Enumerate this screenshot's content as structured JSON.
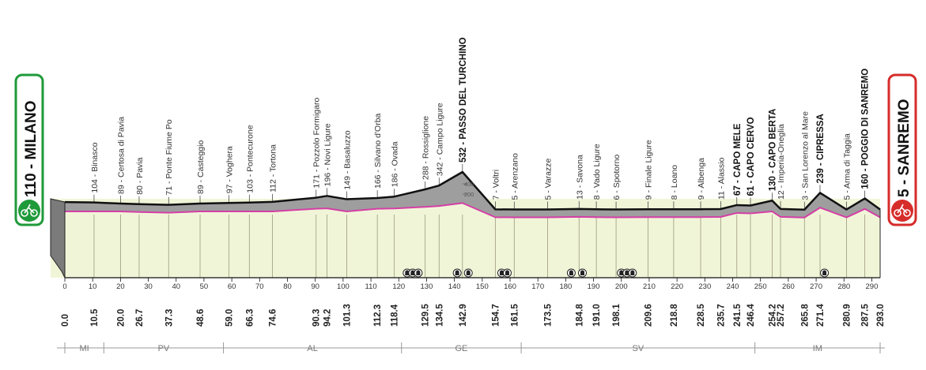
{
  "chart_data": {
    "type": "area",
    "title": "",
    "xlabel": "",
    "ylabel": "",
    "xlim": [
      0,
      293
    ],
    "x_ticks": [
      0,
      10,
      20,
      30,
      40,
      50,
      60,
      70,
      80,
      90,
      100,
      110,
      120,
      130,
      140,
      150,
      160,
      170,
      180,
      190,
      200,
      210,
      220,
      230,
      240,
      250,
      260,
      270,
      280,
      290
    ],
    "y_ticks": [
      200,
      400
    ],
    "start": {
      "altitude": "110",
      "name": "MILANO",
      "color": "#1f9a3a"
    },
    "finish": {
      "altitude": "5",
      "name": "SANREMO",
      "color": "#d62c2a"
    },
    "waypoints": [
      {
        "km": 0.0,
        "altitude": 110,
        "name": "",
        "bold": true
      },
      {
        "km": 10.5,
        "altitude": 104,
        "name": "Binasco",
        "bold": false
      },
      {
        "km": 20.0,
        "altitude": 89,
        "name": "Certosa di Pavia",
        "bold": false
      },
      {
        "km": 26.7,
        "altitude": 80,
        "name": "Pavia",
        "bold": false
      },
      {
        "km": 37.3,
        "altitude": 71,
        "name": "Ponte Fiume Po",
        "bold": false
      },
      {
        "km": 48.6,
        "altitude": 89,
        "name": "Casteggio",
        "bold": false
      },
      {
        "km": 59.0,
        "altitude": 97,
        "name": "Voghera",
        "bold": false
      },
      {
        "km": 66.3,
        "altitude": 103,
        "name": "Pontecurone",
        "bold": false
      },
      {
        "km": 74.6,
        "altitude": 112,
        "name": "Tortona",
        "bold": false
      },
      {
        "km": 90.3,
        "altitude": 171,
        "name": "Pozzolo Formigaro",
        "bold": false
      },
      {
        "km": 94.2,
        "altitude": 196,
        "name": "Novi Ligure",
        "bold": false
      },
      {
        "km": 101.3,
        "altitude": 149,
        "name": "Basaluzzo",
        "bold": false
      },
      {
        "km": 112.3,
        "altitude": 166,
        "name": "Silvano d'Orba",
        "bold": false
      },
      {
        "km": 118.4,
        "altitude": 186,
        "name": "Ovada",
        "bold": false
      },
      {
        "km": 129.5,
        "altitude": 288,
        "name": "Rossiglione",
        "bold": false
      },
      {
        "km": 134.5,
        "altitude": 342,
        "name": "Campo Ligure",
        "bold": false
      },
      {
        "km": 142.9,
        "altitude": 532,
        "name": "PASSO DEL TURCHINO",
        "bold": true
      },
      {
        "km": 154.7,
        "altitude": 7,
        "name": "Voltri",
        "bold": false
      },
      {
        "km": 161.5,
        "altitude": 5,
        "name": "Arenzano",
        "bold": false
      },
      {
        "km": 173.5,
        "altitude": 5,
        "name": "Varazze",
        "bold": false
      },
      {
        "km": 184.8,
        "altitude": 13,
        "name": "Savona",
        "bold": false
      },
      {
        "km": 191.0,
        "altitude": 8,
        "name": "Vado Ligure",
        "bold": false
      },
      {
        "km": 198.1,
        "altitude": 6,
        "name": "Spotorno",
        "bold": false
      },
      {
        "km": 209.6,
        "altitude": 9,
        "name": "Finale Ligure",
        "bold": false
      },
      {
        "km": 218.8,
        "altitude": 8,
        "name": "Loano",
        "bold": false
      },
      {
        "km": 228.5,
        "altitude": 9,
        "name": "Albenga",
        "bold": false
      },
      {
        "km": 235.7,
        "altitude": 11,
        "name": "Alassio",
        "bold": false
      },
      {
        "km": 241.5,
        "altitude": 67,
        "name": "CAPO MELE",
        "bold": true
      },
      {
        "km": 246.4,
        "altitude": 61,
        "name": "CAPO CERVO",
        "bold": true
      },
      {
        "km": 254.2,
        "altitude": 130,
        "name": "CAPO BERTA",
        "bold": true
      },
      {
        "km": 257.2,
        "altitude": 12,
        "name": "Imperia-Oneglia",
        "bold": false
      },
      {
        "km": 265.8,
        "altitude": 3,
        "name": "San Lorenzo al Mare",
        "bold": false
      },
      {
        "km": 271.4,
        "altitude": 239,
        "name": "CIPRESSA",
        "bold": true
      },
      {
        "km": 280.9,
        "altitude": 5,
        "name": "Arma di Taggia",
        "bold": false
      },
      {
        "km": 287.5,
        "altitude": 160,
        "name": "POGGIO DI SANREMO",
        "bold": true
      },
      {
        "km": 293.0,
        "altitude": 5,
        "name": "",
        "bold": true
      }
    ],
    "km_labels": [
      "0.0",
      "10.5",
      "20.0",
      "26.7",
      "37.3",
      "48.6",
      "59.0",
      "66.3",
      "74.6",
      "90.3",
      "94.2",
      "101.3",
      "112.3",
      "118.4",
      "129.5",
      "134.5",
      "142.9",
      "154.7",
      "161.5",
      "173.5",
      "184.8",
      "191.0",
      "198.1",
      "209.6",
      "218.8",
      "228.5",
      "235.7",
      "241.5",
      "246.4",
      "254.2",
      "257.2",
      "265.8",
      "271.4",
      "280.9",
      "287.5",
      "293.0"
    ],
    "km_bold": [
      "0.0",
      "142.9",
      "241.5",
      "246.4",
      "254.2",
      "271.4",
      "287.5",
      "293.0"
    ],
    "tunnels": [
      123,
      125,
      127,
      141,
      145,
      157,
      159,
      182,
      186,
      200,
      202,
      204,
      273
    ],
    "regions": [
      {
        "code": "MI",
        "from": 0,
        "to": 14
      },
      {
        "code": "PV",
        "from": 14,
        "to": 57
      },
      {
        "code": "AL",
        "from": 57,
        "to": 121
      },
      {
        "code": "GE",
        "from": 121,
        "to": 164
      },
      {
        "code": "SV",
        "from": 164,
        "to": 248
      },
      {
        "code": "IM",
        "from": 248,
        "to": 293
      }
    ],
    "colors": {
      "terrain": "#9e9e9e",
      "profile_line": "#111111",
      "road_line": "#d43fa6",
      "field": "#f1f5d8"
    }
  }
}
